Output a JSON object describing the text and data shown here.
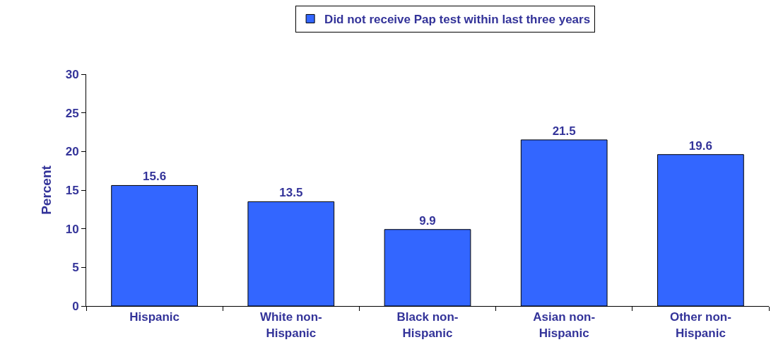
{
  "chart_data": {
    "type": "bar",
    "categories": [
      "Hispanic",
      "White non-\nHispanic",
      "Black non-\nHispanic",
      "Asian non-\nHispanic",
      "Other non-\nHispanic"
    ],
    "series": [
      {
        "name": "Did not receive Pap test within last three years",
        "color": "#3366ff",
        "values": [
          15.6,
          13.5,
          9.9,
          21.5,
          19.6
        ]
      }
    ],
    "ylabel": "Percent",
    "ylim": [
      0,
      30
    ],
    "yticks": [
      0,
      5,
      10,
      15,
      20,
      25,
      30
    ],
    "data_labels": true,
    "legend": "top"
  }
}
